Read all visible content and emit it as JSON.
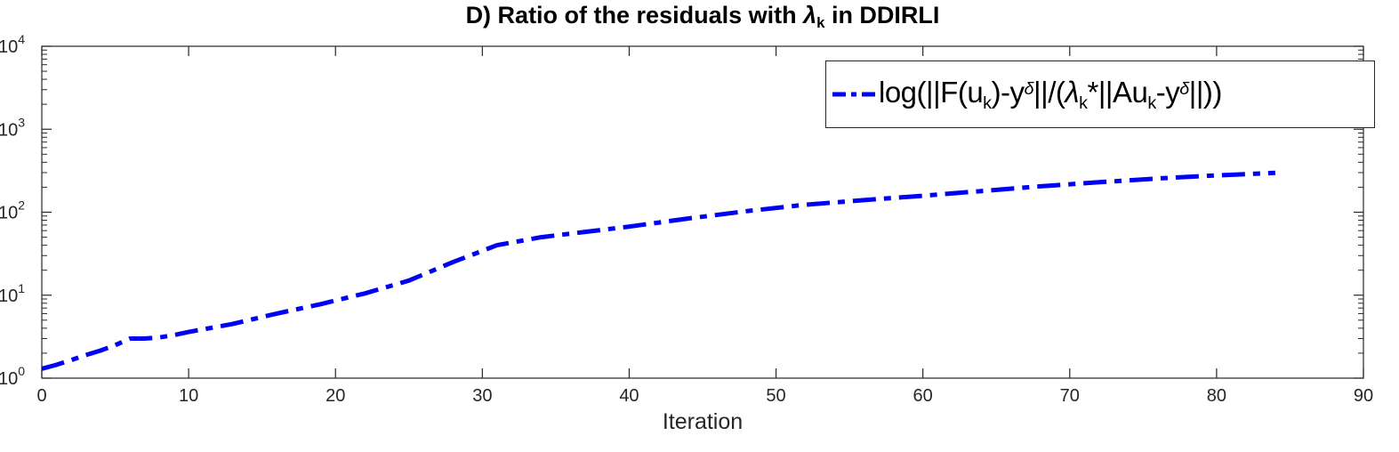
{
  "title": {
    "parts": {
      "prefix": "D) Ratio of the residuals with ",
      "lambda": "λ",
      "lambda_sub": "k",
      "suffix": " in DDIRLI"
    }
  },
  "xlabel": "Iteration",
  "legend": {
    "parts": {
      "p1": "log(||F(u",
      "s1": "k",
      "p2": ")-y",
      "d1": "δ",
      "p3": "||/(",
      "lambda": "λ",
      "s2": "k",
      "p4": "*||Au",
      "s3": "k",
      "p5": "-y",
      "d2": "δ",
      "p6": "||))"
    }
  },
  "colors": {
    "line": "#0000f5",
    "axis": "#262626",
    "title_text": "#000000"
  },
  "chart_data": {
    "type": "line",
    "title": "D) Ratio of the residuals with λ_k in DDIRLI",
    "xlabel": "Iteration",
    "ylabel": "",
    "x_axis": "linear",
    "y_axis": "log",
    "xlim": [
      0,
      90
    ],
    "ylim_log10": [
      0,
      4
    ],
    "xticks": [
      0,
      10,
      20,
      30,
      40,
      50,
      60,
      70,
      80,
      90
    ],
    "yticks_log10": [
      0,
      1,
      2,
      3,
      4
    ],
    "grid": false,
    "legend_position": "northeast",
    "series": [
      {
        "name": "log(||F(u_k)-y^δ||/(λ_k*||Au_k-y^δ||))",
        "color": "#0000f5",
        "line_style": "dash-dot",
        "line_width": 5,
        "x": [
          0,
          1,
          2,
          3,
          4,
          5,
          6,
          7,
          8,
          9,
          10,
          13,
          16,
          19,
          22,
          25,
          28,
          31,
          34,
          37,
          40,
          44,
          48,
          52,
          56,
          60,
          64,
          68,
          72,
          76,
          80,
          84
        ],
        "y": [
          1.3,
          1.45,
          1.65,
          1.9,
          2.15,
          2.5,
          3.0,
          3.0,
          3.1,
          3.3,
          3.6,
          4.5,
          6.0,
          7.8,
          10.5,
          15,
          25,
          40,
          50,
          58,
          67,
          84,
          103,
          123,
          140,
          158,
          180,
          205,
          230,
          255,
          278,
          298
        ]
      }
    ]
  }
}
